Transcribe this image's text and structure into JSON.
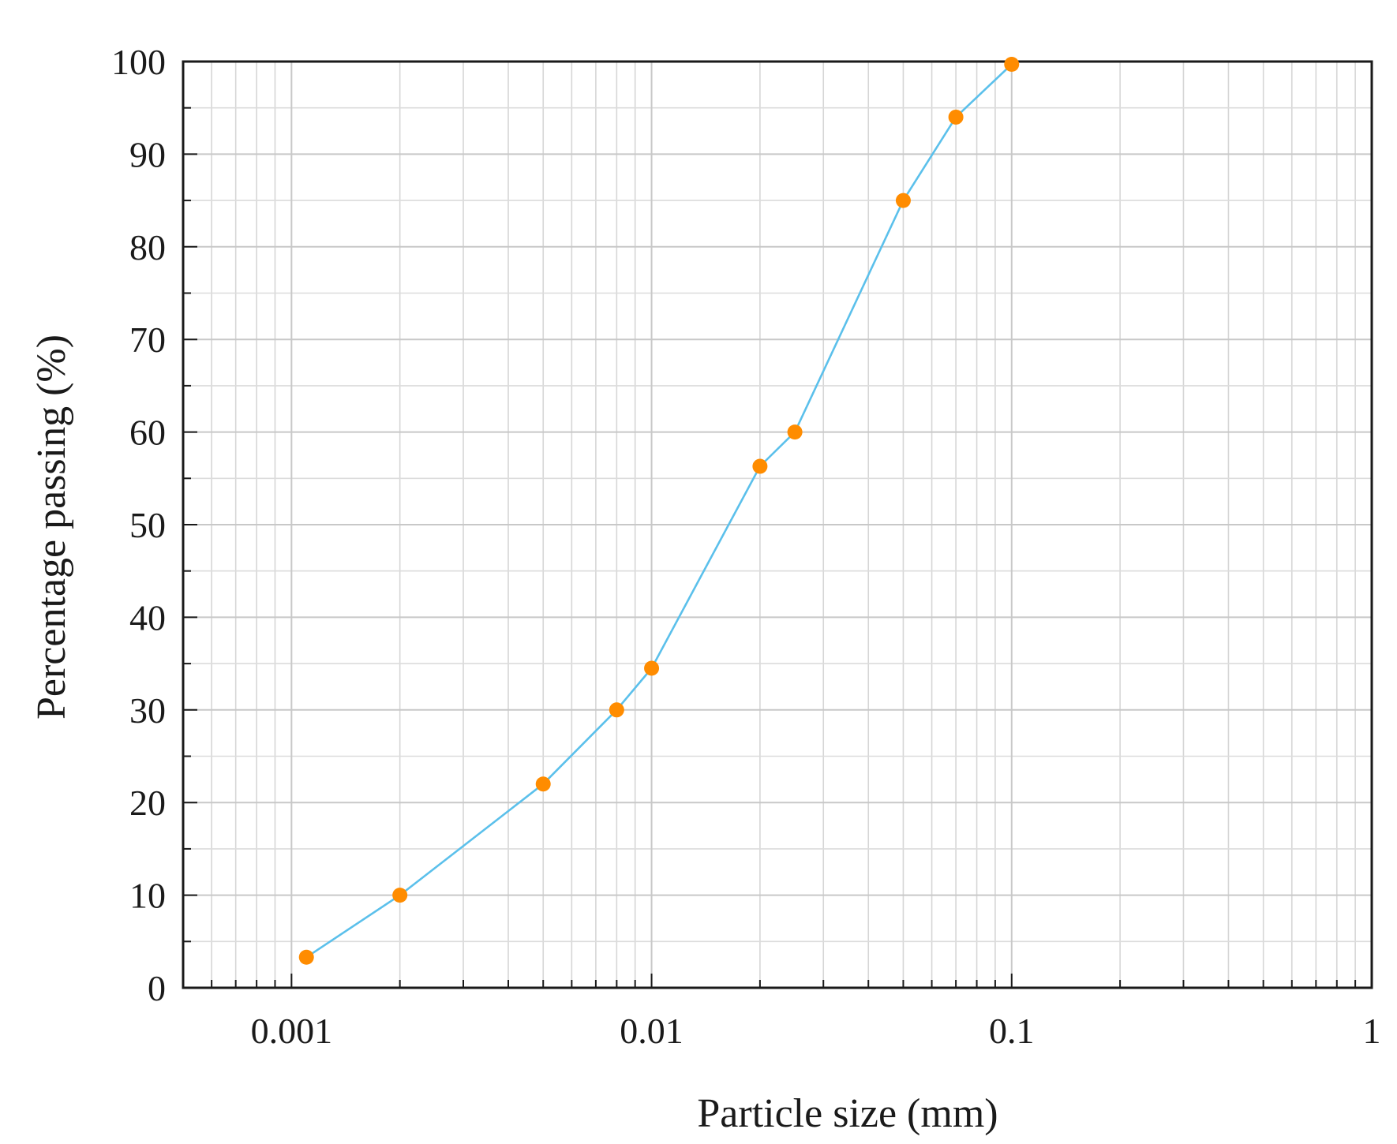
{
  "chart_data": {
    "type": "line",
    "title": "",
    "xlabel": "Particle size (mm)",
    "ylabel": "Percentage passing (%)",
    "x_scale": "log",
    "xlim": [
      0.0005,
      1
    ],
    "ylim": [
      0,
      100
    ],
    "x_ticks": [
      0.001,
      0.01,
      0.1,
      1
    ],
    "x_tick_labels": [
      "0.001",
      "0.01",
      "0.1",
      "1"
    ],
    "y_ticks": [
      0,
      10,
      20,
      30,
      40,
      50,
      60,
      70,
      80,
      90,
      100
    ],
    "y_tick_labels": [
      "0",
      "10",
      "20",
      "30",
      "40",
      "50",
      "60",
      "70",
      "80",
      "90",
      "100"
    ],
    "grid": true,
    "series": [
      {
        "x": [
          0.0011,
          0.002,
          0.005,
          0.008,
          0.01,
          0.02,
          0.025,
          0.05,
          0.07,
          0.1
        ],
        "y": [
          3.3,
          10,
          22,
          30,
          34.5,
          56.3,
          60,
          85,
          94,
          99.7
        ],
        "line_color": "#5bc0eb",
        "marker_color": "#ff8c00"
      }
    ]
  }
}
